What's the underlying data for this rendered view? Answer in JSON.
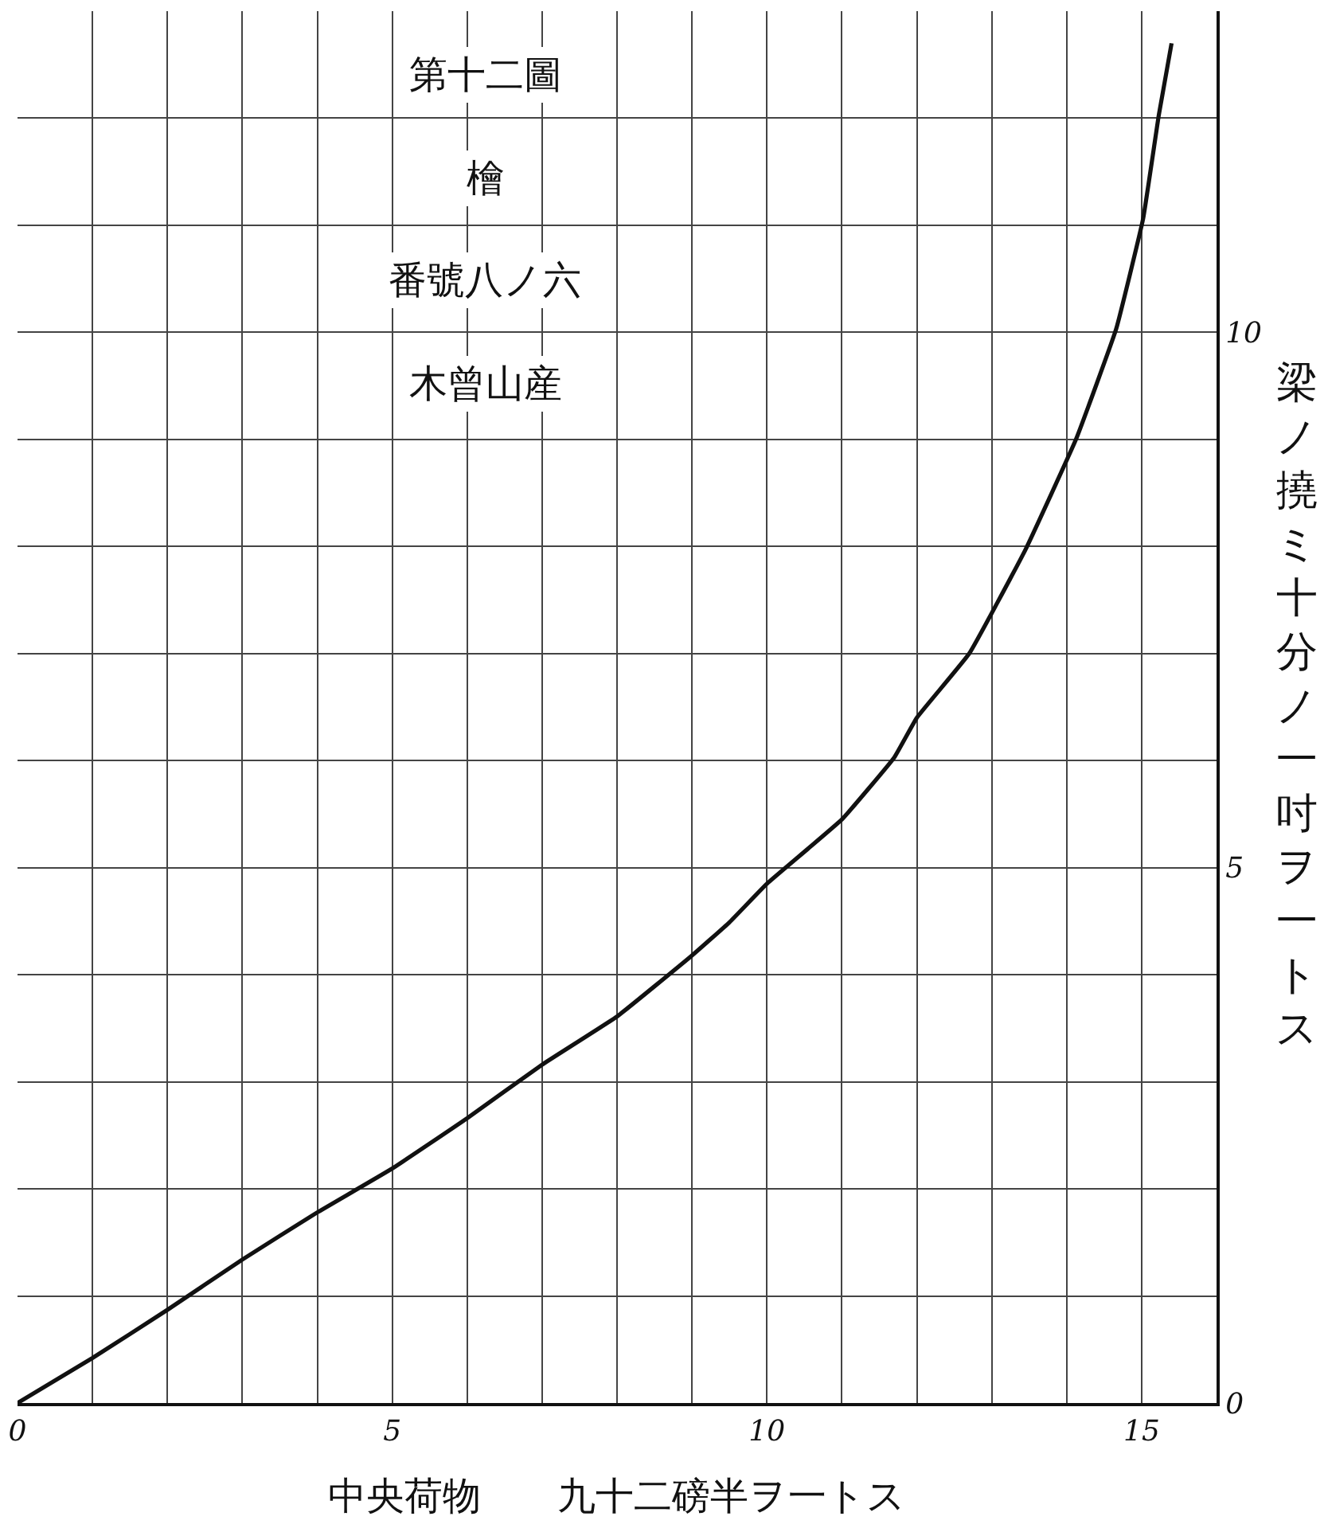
{
  "chart_data": {
    "type": "line",
    "title": "第十二圖",
    "subtitle": "檜",
    "annotations": [
      "番號八ノ六",
      "木曾山産"
    ],
    "xlabel": "中央荷物　　九十二磅半ヲ一トス",
    "ylabel": "梁ノ撓ミ十分ノ一吋ヲ一トス",
    "x": [
      0,
      1,
      2,
      3,
      4,
      5,
      6,
      7,
      8,
      9,
      9.5,
      10,
      11,
      11.7,
      12,
      12.7,
      13.45,
      14.13,
      14.66,
      15.02,
      15.23,
      15.4
    ],
    "series": [
      {
        "color": "#111111",
        "values": [
          0,
          0.42,
          0.87,
          1.34,
          1.78,
          2.19,
          2.66,
          3.16,
          3.61,
          4.18,
          4.49,
          4.85,
          5.45,
          6.03,
          6.4,
          7.0,
          7.97,
          9.01,
          10.03,
          11.06,
          12.03,
          12.7
        ]
      }
    ],
    "xlim": [
      0,
      16
    ],
    "ylim": [
      0,
      13
    ],
    "xticks": [
      0,
      {
        "value": 1,
        "label": null
      },
      {
        "value": 2,
        "label": null
      },
      {
        "value": 3,
        "label": null
      },
      {
        "value": 4,
        "label": null
      },
      5,
      {
        "value": 6,
        "label": null
      },
      {
        "value": 7,
        "label": null
      },
      {
        "value": 8,
        "label": null
      },
      {
        "value": 9,
        "label": null
      },
      10,
      {
        "value": 11,
        "label": null
      },
      {
        "value": 12,
        "label": null
      },
      {
        "value": 13,
        "label": null
      },
      {
        "value": 14,
        "label": null
      },
      15,
      {
        "value": 16,
        "label": null
      }
    ],
    "yticks": [
      0,
      {
        "value": 1,
        "label": null
      },
      {
        "value": 2,
        "label": null
      },
      {
        "value": 3,
        "label": null
      },
      {
        "value": 4,
        "label": null
      },
      5,
      {
        "value": 6,
        "label": null
      },
      {
        "value": 7,
        "label": null
      },
      {
        "value": 8,
        "label": null
      },
      {
        "value": 9,
        "label": null
      },
      10,
      {
        "value": 11,
        "label": null
      },
      {
        "value": 12,
        "label": null
      }
    ],
    "grid": true,
    "marker": "none",
    "line_style": "solid"
  }
}
